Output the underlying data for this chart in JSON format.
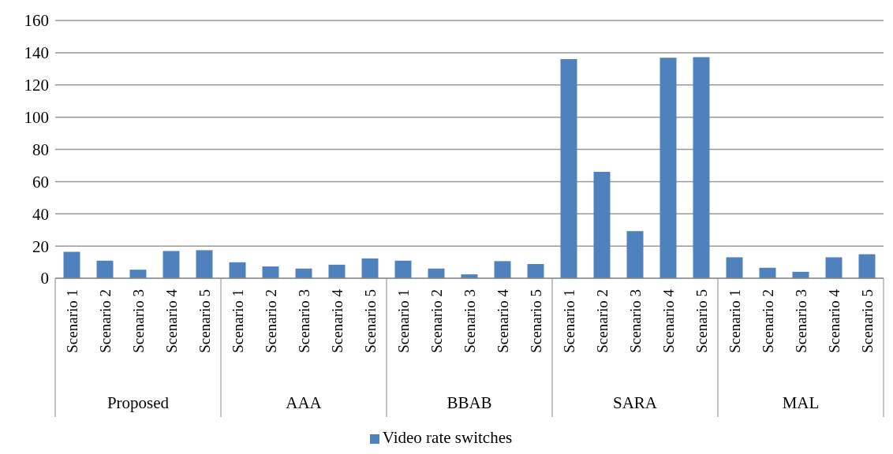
{
  "chart_data": {
    "type": "bar",
    "categories": [
      "Scenario 1",
      "Scenario 2",
      "Scenario 3",
      "Scenario 4",
      "Scenario 5",
      "Scenario 1",
      "Scenario 2",
      "Scenario 3",
      "Scenario 4",
      "Scenario 5",
      "Scenario 1",
      "Scenario 2",
      "Scenario 3",
      "Scenario 4",
      "Scenario 5",
      "Scenario 1",
      "Scenario 2",
      "Scenario 3",
      "Scenario 4",
      "Scenario 5",
      "Scenario 1",
      "Scenario 2",
      "Scenario 3",
      "Scenario 4",
      "Scenario 5"
    ],
    "annotations": [
      "Proposed",
      "AAA",
      "BBAB",
      "SARA",
      "MAL"
    ],
    "series": [
      {
        "name": "Video rate switches",
        "color": "#4f81bd",
        "values": [
          16.4,
          10.9,
          5.3,
          16.9,
          17.4,
          9.9,
          7.3,
          6.0,
          8.4,
          12.3,
          10.9,
          6.0,
          2.4,
          10.6,
          8.8,
          136,
          66,
          29.2,
          136.9,
          137.3,
          13.0,
          6.5,
          4.0,
          13.0,
          14.9
        ]
      }
    ],
    "ylim": [
      0,
      160
    ],
    "yticks": [
      0,
      20,
      40,
      60,
      80,
      100,
      120,
      140,
      160
    ],
    "grid": "y",
    "legend": "bottom"
  }
}
